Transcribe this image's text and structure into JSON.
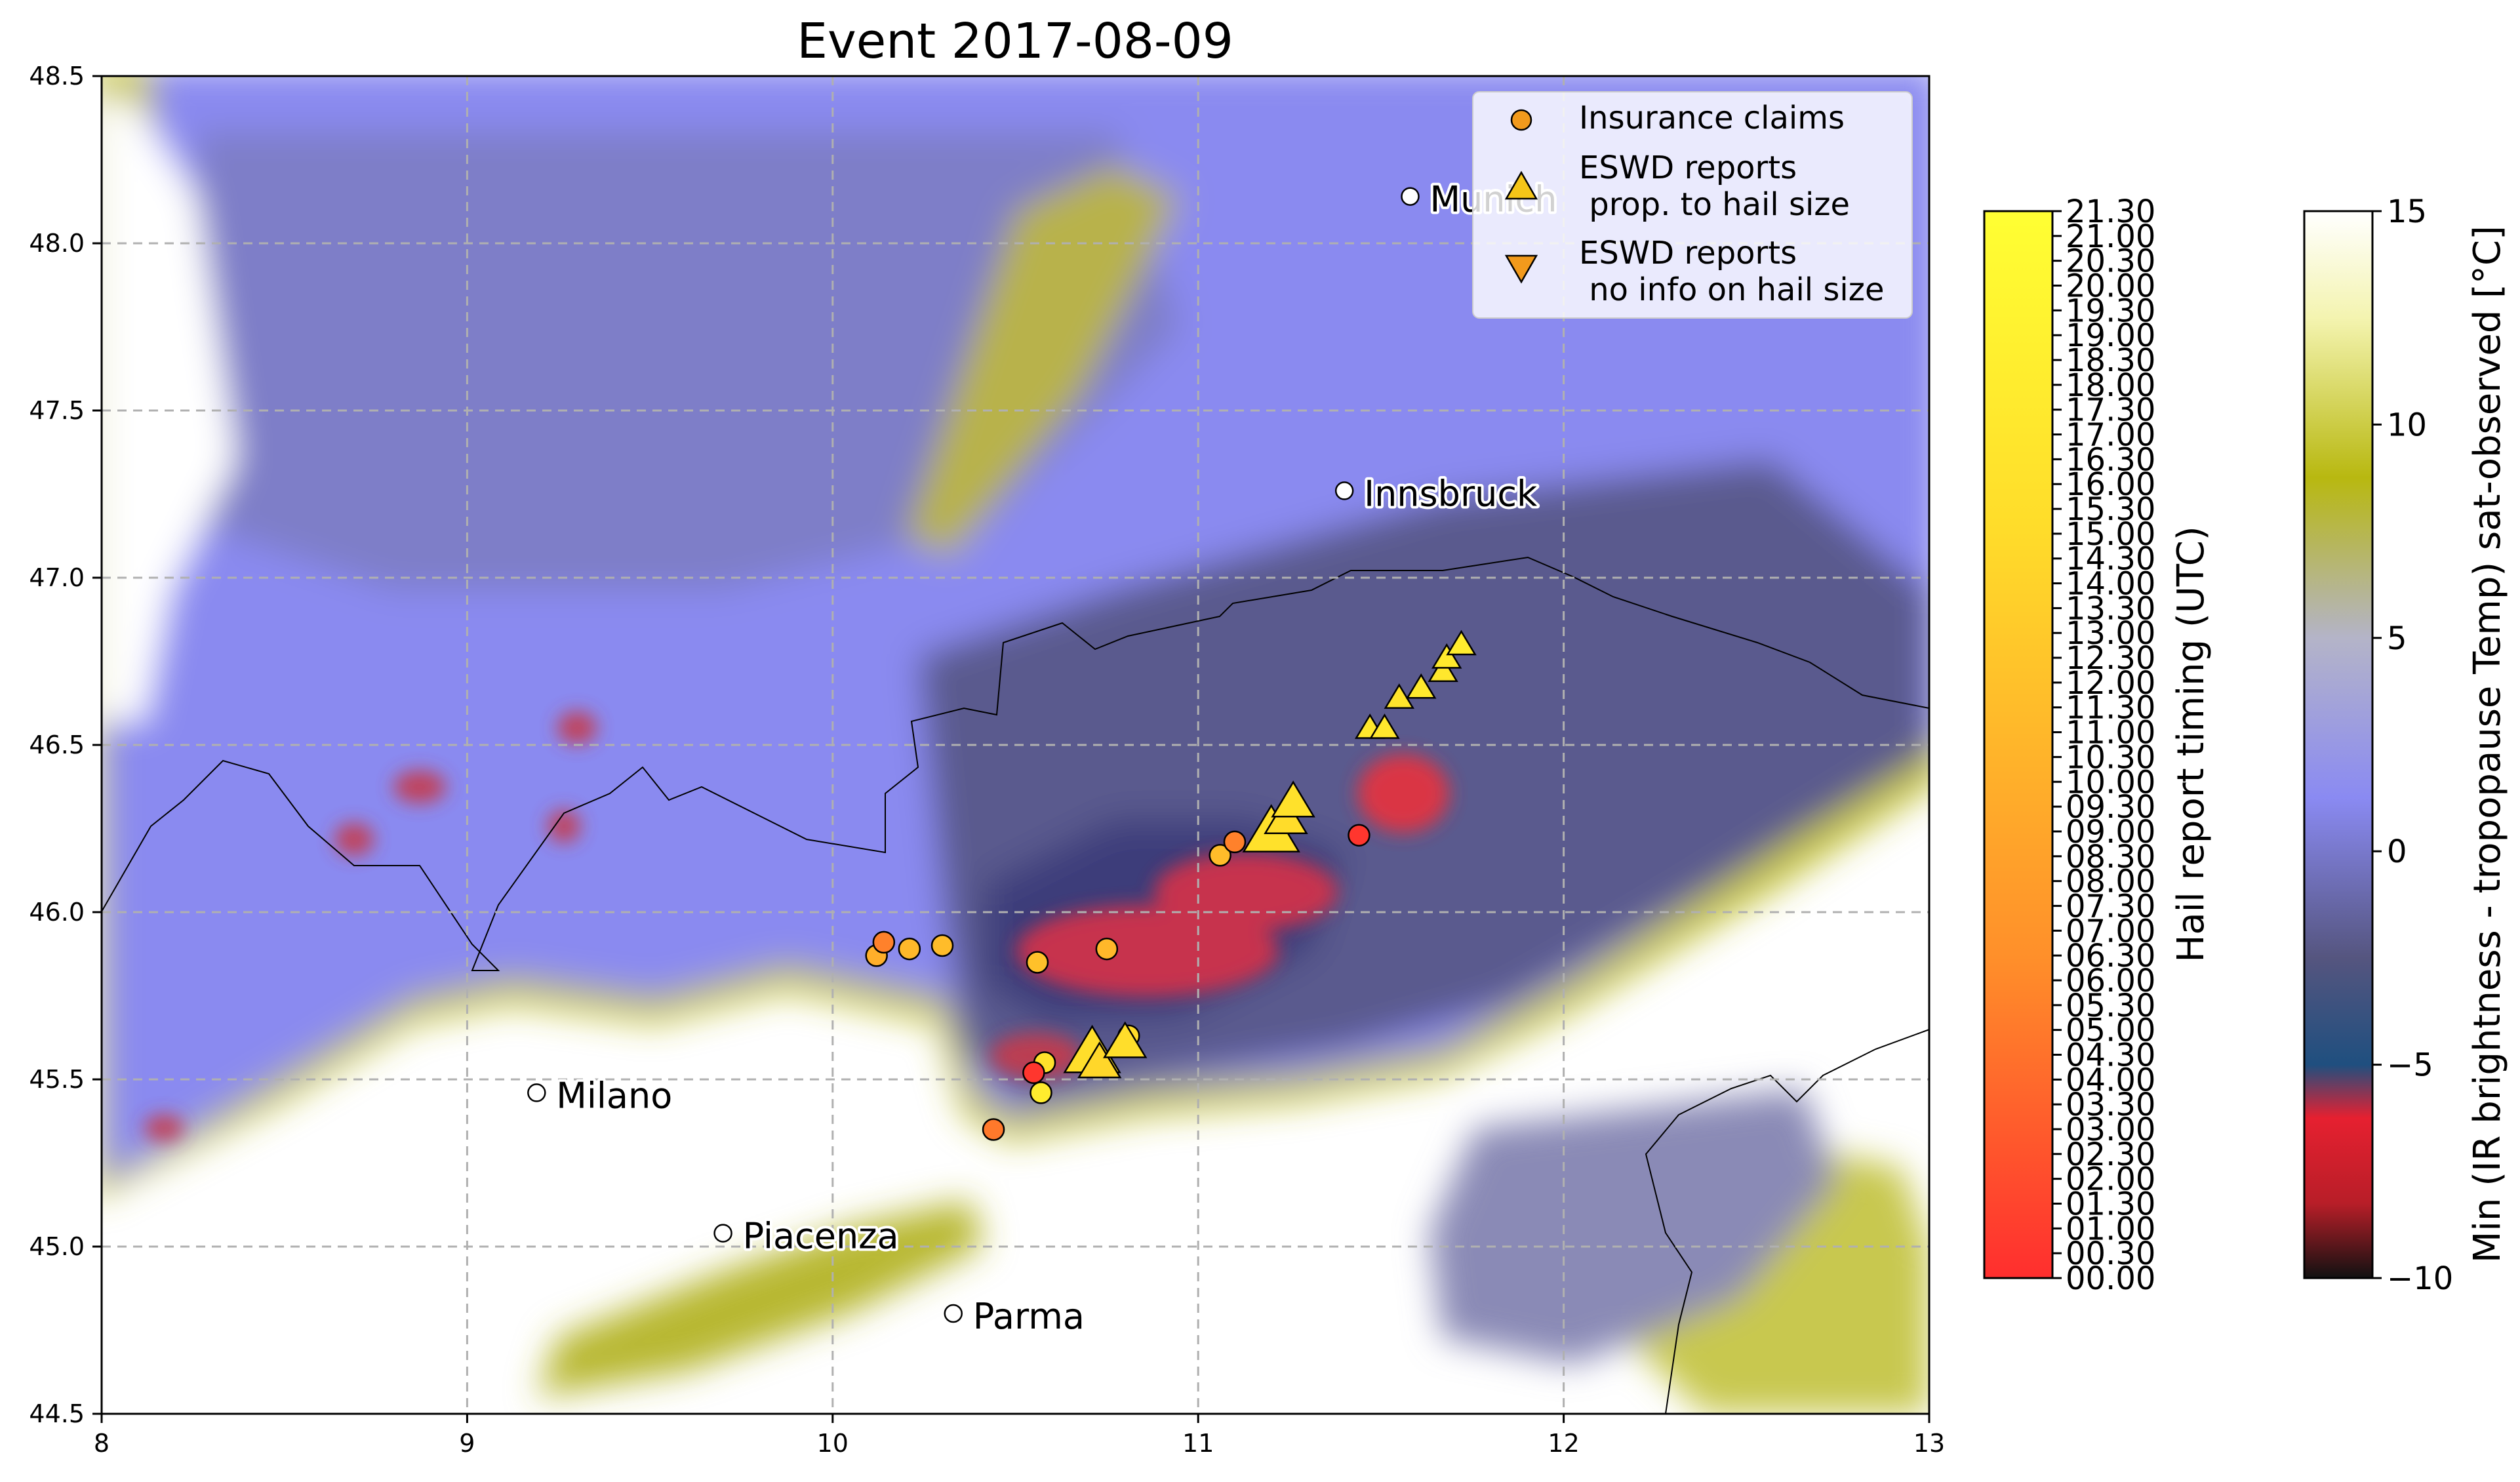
{
  "chart_data": {
    "type": "scatter",
    "title": "Event 2017-08-09",
    "xlim": [
      8,
      13
    ],
    "ylim": [
      44.5,
      48.5
    ],
    "x_ticks": [
      8,
      9,
      10,
      11,
      12,
      13
    ],
    "x_tick_labels": [
      "8",
      "9",
      "10",
      "11",
      "12",
      "13"
    ],
    "y_ticks": [
      44.5,
      45.0,
      45.5,
      46.0,
      46.5,
      47.0,
      47.5,
      48.0,
      48.5
    ],
    "y_tick_labels": [
      "44.5",
      "45.0",
      "45.5",
      "46.0",
      "46.5",
      "47.0",
      "47.5",
      "48.0",
      "48.5"
    ],
    "grid": "dashed",
    "legend_placement": "upper-right",
    "cities": [
      {
        "name": "Munich",
        "lon": 11.58,
        "lat": 48.14
      },
      {
        "name": "Innsbruck",
        "lon": 11.4,
        "lat": 47.26
      },
      {
        "name": "Milano",
        "lon": 9.19,
        "lat": 45.46
      },
      {
        "name": "Piacenza",
        "lon": 9.7,
        "lat": 45.04
      },
      {
        "name": "Parma",
        "lon": 10.33,
        "lat": 44.8
      }
    ],
    "series": [
      {
        "name": "Insurance claims",
        "marker": "circle",
        "points": [
          {
            "lon": 10.12,
            "lat": 45.87,
            "t": 10.0
          },
          {
            "lon": 10.14,
            "lat": 45.91,
            "t": 5.5
          },
          {
            "lon": 10.21,
            "lat": 45.89,
            "t": 11.0
          },
          {
            "lon": 10.3,
            "lat": 45.9,
            "t": 11.5
          },
          {
            "lon": 10.56,
            "lat": 45.85,
            "t": 12.0
          },
          {
            "lon": 10.75,
            "lat": 45.89,
            "t": 11.0
          },
          {
            "lon": 10.81,
            "lat": 45.63,
            "t": 15.0
          },
          {
            "lon": 10.58,
            "lat": 45.55,
            "t": 16.0
          },
          {
            "lon": 10.55,
            "lat": 45.52,
            "t": 0.5
          },
          {
            "lon": 10.57,
            "lat": 45.46,
            "t": 18.0
          },
          {
            "lon": 10.44,
            "lat": 45.35,
            "t": 5.0
          },
          {
            "lon": 11.06,
            "lat": 46.17,
            "t": 11.5
          },
          {
            "lon": 11.1,
            "lat": 46.21,
            "t": 5.5
          },
          {
            "lon": 11.44,
            "lat": 46.23,
            "t": 0.5
          }
        ]
      },
      {
        "name": "ESWD reports\n prop. to hail size",
        "marker": "triangle-up",
        "points": [
          {
            "lon": 10.71,
            "lat": 45.58,
            "t": 15.5,
            "size": 2.0
          },
          {
            "lon": 10.73,
            "lat": 45.55,
            "t": 14.5,
            "size": 1.5
          },
          {
            "lon": 10.8,
            "lat": 45.61,
            "t": 15.5,
            "size": 1.5
          },
          {
            "lon": 11.2,
            "lat": 46.24,
            "t": 16.0,
            "size": 2.0
          },
          {
            "lon": 11.24,
            "lat": 46.28,
            "t": 15.0,
            "size": 1.5
          },
          {
            "lon": 11.26,
            "lat": 46.33,
            "t": 16.0,
            "size": 1.5
          },
          {
            "lon": 11.47,
            "lat": 46.55,
            "t": 17.0,
            "size": 1.0
          },
          {
            "lon": 11.51,
            "lat": 46.55,
            "t": 17.0,
            "size": 1.0
          },
          {
            "lon": 11.55,
            "lat": 46.64,
            "t": 16.5,
            "size": 1.0
          },
          {
            "lon": 11.61,
            "lat": 46.67,
            "t": 17.5,
            "size": 1.0
          },
          {
            "lon": 11.67,
            "lat": 46.72,
            "t": 17.0,
            "size": 1.0
          },
          {
            "lon": 11.68,
            "lat": 46.76,
            "t": 17.5,
            "size": 1.0
          },
          {
            "lon": 11.72,
            "lat": 46.8,
            "t": 18.0,
            "size": 1.0
          }
        ]
      },
      {
        "name": "ESWD reports\n no info on hail size",
        "marker": "triangle-down",
        "points": []
      }
    ],
    "colorbars": [
      {
        "label": "Hail report timing (UTC)",
        "ticks": [
          "00.00",
          "00.30",
          "01.00",
          "01.30",
          "02.00",
          "02.30",
          "03.00",
          "03.30",
          "04.00",
          "04.30",
          "05.00",
          "05.30",
          "06.00",
          "06.30",
          "07.00",
          "07.30",
          "08.00",
          "08.30",
          "09.00",
          "09.30",
          "10.00",
          "10.30",
          "11.00",
          "11.30",
          "12.00",
          "12.30",
          "13.00",
          "13.30",
          "14.00",
          "14.30",
          "15.00",
          "15.30",
          "16.00",
          "16.30",
          "17.00",
          "17.30",
          "18.00",
          "18.30",
          "19.00",
          "19.30",
          "20.00",
          "20.30",
          "21.00",
          "21.30"
        ],
        "range": [
          0,
          21.5
        ],
        "colors": [
          "#ff2e2e",
          "#ff8f2a",
          "#ffdc2a",
          "#ffff33"
        ]
      },
      {
        "label": "Min (IR brightness - tropopause Temp) sat-observed [°C]",
        "ticks": [
          "15",
          "10",
          "5",
          "0",
          "−5",
          "−10"
        ],
        "range": [
          -10,
          15
        ],
        "colors": [
          "#111111",
          "#e62030",
          "#1f4f7f",
          "#55557f",
          "#8a8af2",
          "#b4b4c8",
          "#b8b810",
          "#f4f4b0",
          "#ffffff"
        ]
      }
    ]
  }
}
